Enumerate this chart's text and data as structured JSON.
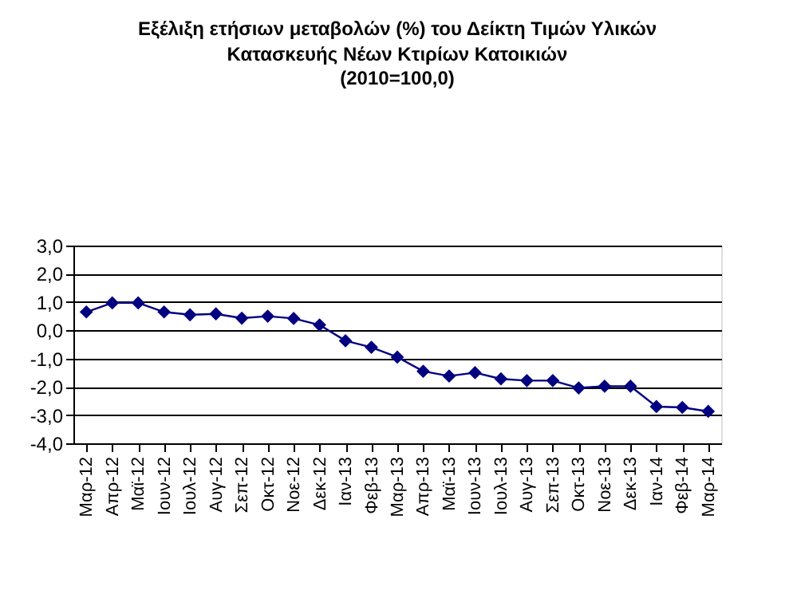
{
  "chart_data": {
    "type": "line",
    "title": "Εξέλιξη ετήσιων μεταβολών (%) του Δείκτη Τιμών Υλικών\nΚατασκευής Νέων Κτιρίων Κατοικιών",
    "subtitle": "(2010=100,0)",
    "categories": [
      "Μαρ-12",
      "Απρ-12",
      "Μαϊ-12",
      "Ιουν-12",
      "Ιουλ-12",
      "Αυγ-12",
      "Σεπ-12",
      "Οκτ-12",
      "Νοε-12",
      "Δεκ-12",
      "Ιαν-13",
      "Φεβ-13",
      "Μαρ-13",
      "Απρ-13",
      "Μαϊ-13",
      "Ιουν-13",
      "Ιουλ-13",
      "Αυγ-13",
      "Σεπ-13",
      "Οκτ-13",
      "Νοε-13",
      "Δεκ-13",
      "Ιαν-14",
      "Φεβ-14",
      "Μαρ-14"
    ],
    "series": [
      {
        "color": "#000080",
        "values": [
          0.65,
          0.97,
          0.97,
          0.65,
          0.55,
          0.58,
          0.43,
          0.5,
          0.42,
          0.19,
          -0.37,
          -0.6,
          -0.95,
          -1.45,
          -1.62,
          -1.5,
          -1.72,
          -1.78,
          -1.78,
          -2.04,
          -1.98,
          -1.98,
          -2.7,
          -2.73,
          -2.87
        ]
      }
    ],
    "ylim": [
      -4,
      3
    ],
    "yticks": [
      {
        "value": -4,
        "label": "-4,0"
      },
      {
        "value": -3,
        "label": "-3,0"
      },
      {
        "value": -2,
        "label": "-2,0"
      },
      {
        "value": -1,
        "label": "-1,0"
      },
      {
        "value": 0,
        "label": "0,0"
      },
      {
        "value": 1,
        "label": "1,0"
      },
      {
        "value": 2,
        "label": "2,0"
      },
      {
        "value": 3,
        "label": "3,0"
      }
    ],
    "grid": "y",
    "marker": "diamond",
    "line_style": "solid"
  }
}
